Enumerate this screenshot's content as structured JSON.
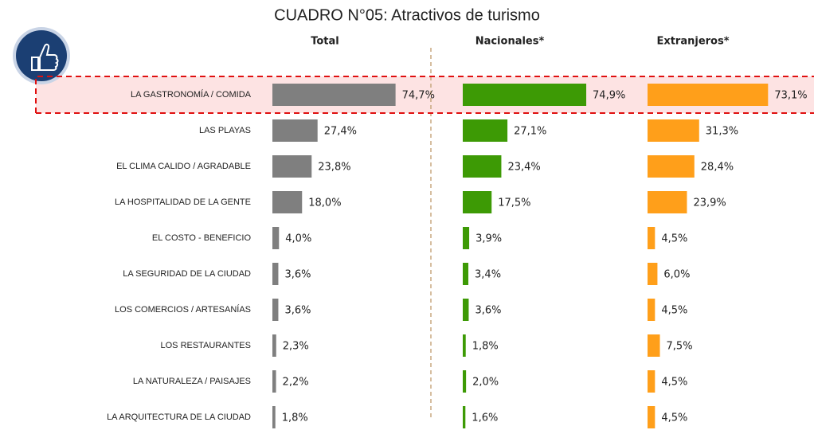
{
  "chart_data": {
    "type": "bar",
    "orientation": "horizontal",
    "title": "CUADRO N°05: Atractivos de turismo",
    "categories": [
      "LA GASTRONOMÍA / COMIDA",
      "LAS PLAYAS",
      "EL CLIMA CALIDO / AGRADABLE",
      "LA HOSPITALIDAD DE LA GENTE",
      "EL COSTO - BENEFICIO",
      "LA SEGURIDAD DE LA CIUDAD",
      "LOS COMERCIOS / ARTESANÍAS",
      "LOS RESTAURANTES",
      "LA NATURALEZA / PAISAJES",
      "LA ARQUITECTURA DE LA CIUDAD"
    ],
    "series": [
      {
        "name": "Total",
        "color": "#7f7f7f",
        "values": [
          74.7,
          27.4,
          23.8,
          18.0,
          4.0,
          3.6,
          3.6,
          2.3,
          2.2,
          1.8
        ],
        "value_labels": [
          "74,7%",
          "27,4%",
          "23,8%",
          "18,0%",
          "4,0%",
          "3,6%",
          "3,6%",
          "2,3%",
          "2,2%",
          "1,8%"
        ]
      },
      {
        "name": "Nacionales*",
        "color": "#3d9a05",
        "values": [
          74.9,
          27.1,
          23.4,
          17.5,
          3.9,
          3.4,
          3.6,
          1.8,
          2.0,
          1.6
        ],
        "value_labels": [
          "74,9%",
          "27,1%",
          "23,4%",
          "17,5%",
          "3,9%",
          "3,4%",
          "3,6%",
          "1,8%",
          "2,0%",
          "1,6%"
        ]
      },
      {
        "name": "Extranjeros*",
        "color": "#ff9f1a",
        "values": [
          73.1,
          31.3,
          28.4,
          23.9,
          4.5,
          6.0,
          4.5,
          7.5,
          4.5,
          4.5
        ],
        "value_labels": [
          "73,1%",
          "31,3%",
          "28,4%",
          "23,9%",
          "4,5%",
          "6,0%",
          "4,5%",
          "7,5%",
          "4,5%",
          "4,5%"
        ]
      }
    ]
  }
}
